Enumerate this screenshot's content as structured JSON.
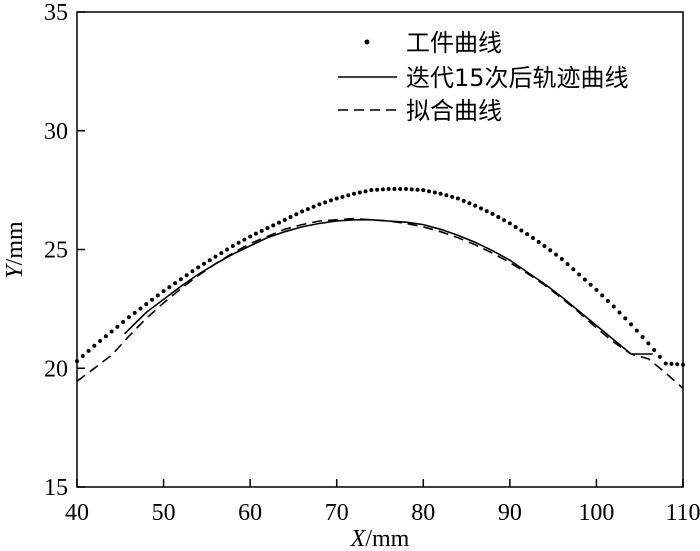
{
  "chart_data": {
    "type": "line",
    "xlabel": {
      "var": "X",
      "unit": "/mm"
    },
    "ylabel": {
      "var": "Y",
      "unit": "/mm"
    },
    "xlim": [
      40,
      110
    ],
    "ylim": [
      15,
      35
    ],
    "xticks": [
      "40",
      "50",
      "60",
      "70",
      "80",
      "90",
      "100",
      "110"
    ],
    "yticks": [
      "15",
      "20",
      "25",
      "30",
      "35"
    ],
    "grid": false,
    "legend_position": "top-right",
    "series": [
      {
        "name": "工件曲线",
        "style": "dots",
        "x": [
          40,
          42,
          44,
          46,
          48,
          50,
          52,
          54,
          56,
          58,
          60,
          62,
          64,
          66,
          68,
          70,
          72,
          74,
          76,
          78,
          80,
          82,
          84,
          86,
          88,
          90,
          92,
          94,
          96,
          98,
          100,
          102,
          104,
          106,
          108,
          110
        ],
        "y": [
          20.3,
          20.95,
          21.55,
          22.15,
          22.7,
          23.25,
          23.75,
          24.25,
          24.7,
          25.15,
          25.55,
          25.9,
          26.25,
          26.6,
          26.9,
          27.15,
          27.35,
          27.5,
          27.55,
          27.55,
          27.5,
          27.35,
          27.15,
          26.85,
          26.5,
          26.1,
          25.65,
          25.15,
          24.6,
          23.95,
          23.3,
          22.6,
          21.85,
          21.05,
          20.2,
          20.15
        ]
      },
      {
        "name": "迭代15次后轨迹曲线",
        "style": "solid",
        "x": [
          45.5,
          48,
          50,
          52,
          54,
          56,
          58,
          60,
          62,
          64,
          66,
          68,
          70,
          72,
          74,
          76,
          78,
          80,
          82,
          84,
          86,
          88,
          90,
          92,
          94,
          96,
          98,
          100,
          102,
          104,
          106.5
        ],
        "y": [
          21.45,
          22.35,
          22.9,
          23.45,
          23.95,
          24.4,
          24.8,
          25.15,
          25.5,
          25.75,
          25.95,
          26.1,
          26.2,
          26.25,
          26.25,
          26.2,
          26.15,
          26.05,
          25.85,
          25.6,
          25.3,
          24.95,
          24.55,
          24.05,
          23.55,
          23.0,
          22.4,
          21.8,
          21.2,
          20.6,
          20.6
        ]
      },
      {
        "name": "拟合曲线",
        "style": "dashed",
        "x": [
          40,
          42,
          44,
          46,
          48,
          50,
          52,
          54,
          56,
          58,
          60,
          62,
          64,
          66,
          68,
          70,
          72,
          74,
          76,
          78,
          80,
          82,
          84,
          86,
          88,
          90,
          92,
          94,
          96,
          98,
          100,
          102,
          104,
          106,
          108,
          110
        ],
        "y": [
          19.45,
          20.0,
          20.55,
          21.35,
          22.1,
          22.75,
          23.35,
          23.9,
          24.4,
          24.85,
          25.25,
          25.55,
          25.85,
          26.05,
          26.2,
          26.25,
          26.3,
          26.25,
          26.2,
          26.1,
          25.95,
          25.75,
          25.5,
          25.2,
          24.85,
          24.45,
          24.0,
          23.5,
          22.95,
          22.35,
          21.7,
          21.1,
          20.6,
          20.4,
          19.8,
          19.15
        ]
      }
    ]
  }
}
